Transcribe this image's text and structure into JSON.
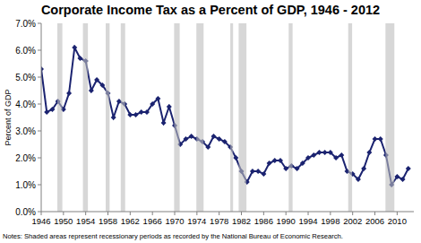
{
  "chart_data": {
    "type": "line",
    "title": "Corporate Income Tax as a Percent of GDP, 1946 - 2012",
    "y_label": "Percent of GDP",
    "notes": "Notes: Shaded areas represent recessionary periods as recorded by the National Bureau of Economic Research.",
    "x": [
      1946,
      1947,
      1948,
      1949,
      1950,
      1951,
      1952,
      1953,
      1954,
      1955,
      1956,
      1957,
      1958,
      1959,
      1960,
      1961,
      1962,
      1963,
      1964,
      1965,
      1966,
      1967,
      1968,
      1969,
      1970,
      1971,
      1972,
      1973,
      1974,
      1975,
      1976,
      1977,
      1978,
      1979,
      1980,
      1981,
      1982,
      1983,
      1984,
      1985,
      1986,
      1987,
      1988,
      1989,
      1990,
      1991,
      1992,
      1993,
      1994,
      1995,
      1996,
      1997,
      1998,
      1999,
      2000,
      2001,
      2002,
      2003,
      2004,
      2005,
      2006,
      2007,
      2008,
      2009,
      2010,
      2011,
      2012
    ],
    "values": [
      5.3,
      3.7,
      3.8,
      4.1,
      3.8,
      4.4,
      6.1,
      5.7,
      5.6,
      4.5,
      4.9,
      4.7,
      4.4,
      3.5,
      4.1,
      4.0,
      3.6,
      3.6,
      3.7,
      3.7,
      4.0,
      4.2,
      3.3,
      3.9,
      3.2,
      2.5,
      2.7,
      2.8,
      2.7,
      2.6,
      2.4,
      2.8,
      2.7,
      2.6,
      2.4,
      2.0,
      1.5,
      1.1,
      1.5,
      1.5,
      1.4,
      1.8,
      1.9,
      1.9,
      1.6,
      1.7,
      1.6,
      1.8,
      2.0,
      2.1,
      2.2,
      2.2,
      2.2,
      2.0,
      2.1,
      1.5,
      1.4,
      1.2,
      1.6,
      2.2,
      2.7,
      2.7,
      2.1,
      1.0,
      1.3,
      1.2,
      1.6
    ],
    "color": "#1b2370",
    "marker": "diamond",
    "recessions": [
      [
        1948.9,
        1949.8
      ],
      [
        1953.5,
        1954.4
      ],
      [
        1957.6,
        1958.3
      ],
      [
        1960.3,
        1961.1
      ],
      [
        1969.9,
        1970.9
      ],
      [
        1973.9,
        1975.2
      ],
      [
        1980.0,
        1980.5
      ],
      [
        1981.5,
        1982.9
      ],
      [
        1990.5,
        1991.2
      ],
      [
        2001.2,
        2001.9
      ],
      [
        2007.9,
        2009.5
      ]
    ],
    "xlim": [
      1946,
      2013
    ],
    "xticks": [
      1946,
      1950,
      1954,
      1958,
      1962,
      1966,
      1970,
      1974,
      1978,
      1982,
      1986,
      1990,
      1994,
      1998,
      2002,
      2006,
      2010
    ],
    "ylim": [
      0,
      7
    ],
    "yticks": [
      {
        "value": 0,
        "label": "0.0%"
      },
      {
        "value": 1,
        "label": "1.0%"
      },
      {
        "value": 2,
        "label": "2.0%"
      },
      {
        "value": 3,
        "label": "3.0%"
      },
      {
        "value": 4,
        "label": "4.0%"
      },
      {
        "value": 5,
        "label": "5.0%"
      },
      {
        "value": 6,
        "label": "6.0%"
      },
      {
        "value": 7,
        "label": "7.0%"
      }
    ],
    "grid": false
  }
}
